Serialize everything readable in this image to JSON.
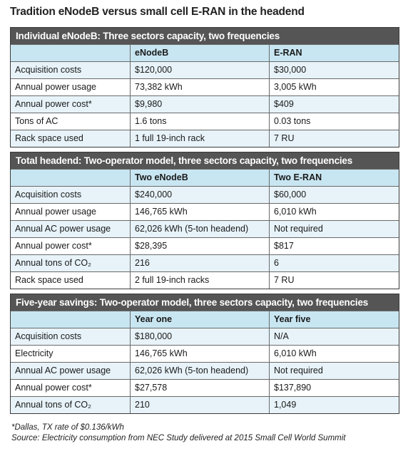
{
  "title": "Tradition eNodeB versus small cell E-RAN in the headend",
  "sections": [
    {
      "heading": "Individual eNodeB: Three sectors capacity, two frequencies",
      "columns": [
        "",
        "eNodeB",
        "E-RAN"
      ],
      "rows": [
        [
          "Acquisition costs",
          "$120,000",
          "$30,000"
        ],
        [
          "Annual power usage",
          "73,382 kWh",
          "3,005 kWh"
        ],
        [
          "Annual power cost*",
          "$9,980",
          "$409"
        ],
        [
          "Tons of AC",
          "1.6 tons",
          "0.03 tons"
        ],
        [
          "Rack space used",
          "1 full 19-inch rack",
          "7 RU"
        ]
      ]
    },
    {
      "heading": "Total headend: Two-operator model, three sectors capacity, two frequencies",
      "columns": [
        "",
        "Two eNodeB",
        "Two E-RAN"
      ],
      "rows": [
        [
          "Acquisition costs",
          "$240,000",
          "$60,000"
        ],
        [
          "Annual power usage",
          "146,765 kWh",
          "6,010 kWh"
        ],
        [
          "Annual AC power usage",
          "62,026 kWh (5-ton headend)",
          "Not required"
        ],
        [
          "Annual power cost*",
          "$28,395",
          "$817"
        ],
        [
          "Annual tons of CO₂",
          "216",
          "6"
        ],
        [
          "Rack space used",
          "2 full 19-inch racks",
          "7 RU"
        ]
      ]
    },
    {
      "heading": "Five-year savings: Two-operator model, three sectors capacity, two frequencies",
      "columns": [
        "",
        "Year one",
        "Year five"
      ],
      "rows": [
        [
          "Acquisition costs",
          "$180,000",
          "N/A"
        ],
        [
          "Electricity",
          "146,765 kWh",
          "6,010 kWh"
        ],
        [
          "Annual AC power usage",
          "62,026 kWh (5-ton headend)",
          "Not required"
        ],
        [
          "Annual power cost*",
          "$27,578",
          "$137,890"
        ],
        [
          "Annual tons of CO₂",
          "210",
          "1,049"
        ]
      ]
    }
  ],
  "footnotes": [
    "*Dallas, TX rate of $0.136/kWh",
    "Source: Electricity consumption from NEC Study delivered at 2015 Small Cell World Summit"
  ]
}
